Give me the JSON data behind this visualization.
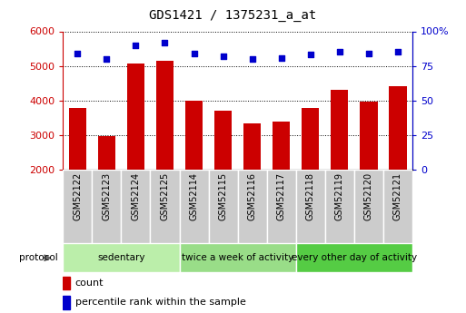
{
  "title": "GDS1421 / 1375231_a_at",
  "samples": [
    "GSM52122",
    "GSM52123",
    "GSM52124",
    "GSM52125",
    "GSM52114",
    "GSM52115",
    "GSM52116",
    "GSM52117",
    "GSM52118",
    "GSM52119",
    "GSM52120",
    "GSM52121"
  ],
  "counts": [
    3800,
    2980,
    5070,
    5150,
    4010,
    3700,
    3350,
    3390,
    3780,
    4320,
    3960,
    4420
  ],
  "percentile_ranks": [
    84,
    80,
    90,
    92,
    84,
    82,
    80,
    81,
    83,
    85,
    84,
    85
  ],
  "ylim_left": [
    2000,
    6000
  ],
  "ylim_right": [
    0,
    100
  ],
  "yticks_left": [
    2000,
    3000,
    4000,
    5000,
    6000
  ],
  "yticks_right": [
    0,
    25,
    50,
    75,
    100
  ],
  "bar_color": "#cc0000",
  "dot_color": "#0000cc",
  "bar_bottom": 2000,
  "groups": [
    {
      "label": "sedentary",
      "start": 0,
      "end": 4,
      "color": "#bbeeaa"
    },
    {
      "label": "twice a week of activity",
      "start": 4,
      "end": 8,
      "color": "#99dd88"
    },
    {
      "label": "every other day of activity",
      "start": 8,
      "end": 12,
      "color": "#55cc44"
    }
  ],
  "sample_box_color": "#cccccc",
  "protocol_label": "protocol",
  "legend_count_label": "count",
  "legend_pct_label": "percentile rank within the sample",
  "tick_label_color_left": "#cc0000",
  "tick_label_color_right": "#0000cc"
}
